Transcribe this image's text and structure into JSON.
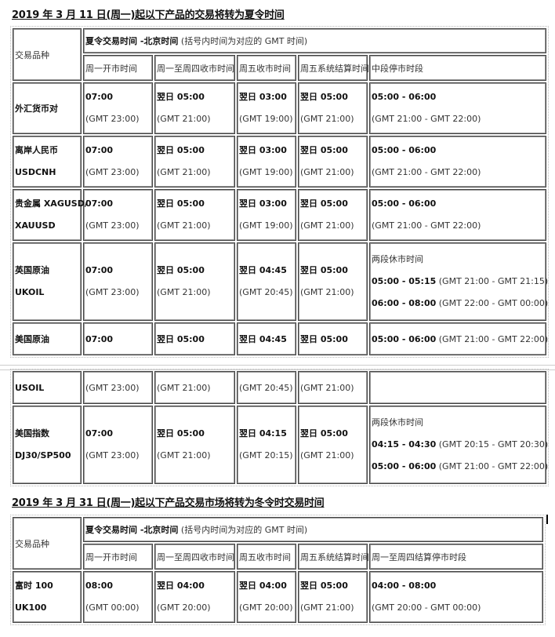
{
  "section1": {
    "title": "2019 年 3 月 11 日(周一)起以下产品的交易将转为夏令时间",
    "col_product": "交易品种",
    "header_bold": "夏令交易时间 -北京时间",
    "header_note": " (括号内时间为对应的 GMT 时间)",
    "cols": [
      "周一开市时间",
      "周一至周四收市时间",
      "周五收市时间",
      "周五系统结算时间",
      "中段停市时段"
    ],
    "rows": [
      {
        "name": [
          "外汇货币对",
          ""
        ],
        "cells": [
          [
            "07:00",
            "(GMT 23:00)"
          ],
          [
            "翌日 05:00",
            "(GMT 21:00)"
          ],
          [
            "翌日 03:00",
            "(GMT 19:00)"
          ],
          [
            "翌日 05:00",
            "(GMT 21:00)"
          ],
          [
            "05:00 - 06:00",
            "(GMT 21:00 - GMT 22:00)"
          ]
        ]
      },
      {
        "name": [
          "离岸人民币",
          "USDCNH"
        ],
        "cells": [
          [
            "07:00",
            "(GMT 23:00)"
          ],
          [
            "翌日 05:00",
            "(GMT 21:00)"
          ],
          [
            "翌日 03:00",
            "(GMT 19:00)"
          ],
          [
            "翌日 05:00",
            "(GMT 21:00)"
          ],
          [
            "05:00 - 06:00",
            "(GMT 21:00 - GMT 22:00)"
          ]
        ]
      },
      {
        "name": [
          "贵金属 XAGUSD/",
          "XAUUSD"
        ],
        "cells": [
          [
            "07:00",
            "(GMT 23:00)"
          ],
          [
            "翌日 05:00",
            "(GMT 21:00)"
          ],
          [
            "翌日 03:00",
            "(GMT 19:00)"
          ],
          [
            "翌日 05:00",
            "(GMT 21:00)"
          ],
          [
            "05:00 - 06:00",
            "(GMT 21:00 - GMT 22:00)"
          ]
        ]
      },
      {
        "name": [
          "英国原油",
          "UKOIL"
        ],
        "cells": [
          [
            "07:00",
            "(GMT 23:00)"
          ],
          [
            "翌日 05:00",
            "(GMT 21:00)"
          ],
          [
            "翌日 04:45",
            "(GMT 20:45)"
          ],
          [
            "翌日 05:00",
            "(GMT 21:00)"
          ]
        ],
        "break": {
          "label": "两段休市时间",
          "p1": "05:00 - 05:15",
          "g1": " (GMT 21:00 - GMT 21:15)",
          "p2": "06:00 - 08:00",
          "g2": " (GMT 22:00 - GMT 00:00)"
        }
      },
      {
        "name": [
          "美国原油"
        ],
        "cells": [
          "07:00",
          "翌日 05:00",
          "翌日 04:45",
          "翌日 05:00"
        ],
        "break": {
          "p1": "05:00 - 06:00",
          "g1": " (GMT 21:00 - GMT 22:00)"
        }
      }
    ],
    "rows_cont": [
      {
        "name": "USOIL",
        "cells": [
          "(GMT 23:00)",
          "(GMT 21:00)",
          "(GMT 20:45)",
          "(GMT 21:00)"
        ]
      },
      {
        "name": [
          "美国指数",
          "DJ30/SP500"
        ],
        "cells": [
          [
            "07:00",
            "(GMT 23:00)"
          ],
          [
            "翌日 05:00",
            "(GMT 21:00)"
          ],
          [
            "翌日 04:15",
            "(GMT 20:15)"
          ],
          [
            "翌日 05:00",
            "(GMT 21:00)"
          ]
        ],
        "break": {
          "label": "两段休市时间",
          "p1": "04:15 - 04:30",
          "g1": " (GMT 20:15 - GMT 20:30)",
          "p2": "05:00 - 06:00",
          "g2": " (GMT 21:00 - GMT 22:00)"
        }
      }
    ]
  },
  "section2": {
    "title": "2019 年 3 月 31 日(周一)起以下产品交易市场将转为冬令时交易时间",
    "col_product": "交易品种",
    "header_bold": "夏令交易时间 -北京时间",
    "header_note": " (括号内时间为对应的 GMT 时间)",
    "cols": [
      "周一开市时间",
      "周一至周四收市时间",
      "周五收市时间",
      "周五系统结算时间",
      "周一至周四结算停市时段"
    ],
    "rows": [
      {
        "name": [
          "富时 100",
          "UK100"
        ],
        "cells": [
          [
            "08:00",
            "(GMT 00:00)"
          ],
          [
            "翌日 04:00",
            "(GMT 20:00)"
          ],
          [
            "翌日 04:00",
            "(GMT 20:00)"
          ],
          [
            "翌日 05:00",
            "(GMT 21:00)"
          ],
          [
            "04:00 - 08:00",
            "(GMT 20:00 - GMT 00:00)"
          ]
        ]
      }
    ]
  }
}
